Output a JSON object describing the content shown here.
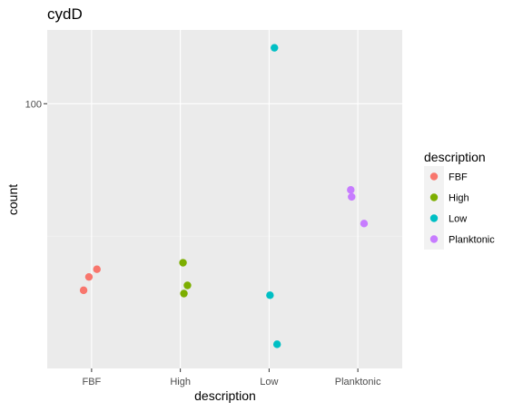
{
  "chart_data": {
    "type": "scatter",
    "title": "cydD",
    "xlabel": "description",
    "ylabel": "count",
    "y_scale": "log10",
    "ylim": [
      39,
      130
    ],
    "y_ticks": [
      100
    ],
    "y_tick_labels": [
      "100"
    ],
    "grid": true,
    "categories": [
      "FBF",
      "High",
      "Low",
      "Planktonic"
    ],
    "colors": {
      "FBF": "#f8766d",
      "High": "#7cae00",
      "Low": "#00bfc4",
      "Planktonic": "#c77cff"
    },
    "points": [
      {
        "category": "FBF",
        "jitter": 0.06,
        "y": 55.5
      },
      {
        "category": "FBF",
        "jitter": -0.03,
        "y": 54.0
      },
      {
        "category": "FBF",
        "jitter": -0.09,
        "y": 51.5
      },
      {
        "category": "High",
        "jitter": 0.03,
        "y": 56.8
      },
      {
        "category": "High",
        "jitter": 0.08,
        "y": 52.4
      },
      {
        "category": "High",
        "jitter": 0.04,
        "y": 50.9
      },
      {
        "category": "Low",
        "jitter": 0.06,
        "y": 122.0
      },
      {
        "category": "Low",
        "jitter": 0.01,
        "y": 50.6
      },
      {
        "category": "Low",
        "jitter": 0.09,
        "y": 42.5
      },
      {
        "category": "Planktonic",
        "jitter": -0.08,
        "y": 73.6
      },
      {
        "category": "Planktonic",
        "jitter": -0.07,
        "y": 71.8
      },
      {
        "category": "Planktonic",
        "jitter": 0.07,
        "y": 65.3
      }
    ],
    "legend": {
      "title": "description",
      "position": "right",
      "entries": [
        "FBF",
        "High",
        "Low",
        "Planktonic"
      ]
    }
  }
}
